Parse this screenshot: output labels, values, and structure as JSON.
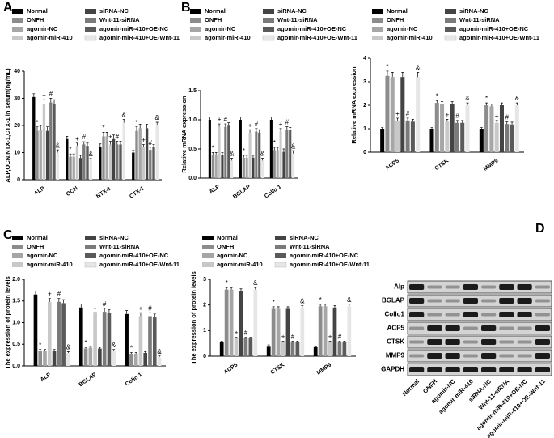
{
  "chart_data": [
    {
      "type": "bar",
      "panel": "A",
      "ylabel": "ALP,OCN,NTX-1,CTX-1 in serum(ng/mL)",
      "categories": [
        "ALP",
        "OCN",
        "NTX-1",
        "CTX-1"
      ],
      "ylim": [
        0,
        40
      ],
      "yticks": [
        0,
        10,
        20,
        30,
        40
      ],
      "series": [
        {
          "name": "Normal",
          "color": "#000000",
          "values": [
            30.5,
            15,
            12,
            10
          ],
          "errors": [
            1.2,
            1,
            1.2,
            0.8
          ]
        },
        {
          "name": "ONFH",
          "color": "#8c8c8c",
          "marker": "*",
          "values": [
            18,
            8.5,
            16,
            18
          ],
          "errors": [
            1.5,
            1,
            1.5,
            1.5
          ]
        },
        {
          "name": "agomir-NC",
          "color": "#a6a6a6",
          "values": [
            18.5,
            8.5,
            16,
            19
          ],
          "errors": [
            1.5,
            1,
            1.5,
            1.5
          ]
        },
        {
          "name": "agomir-miR-410",
          "color": "#c8c8c8",
          "marker": "+",
          "values": [
            28,
            12.5,
            13,
            12
          ],
          "errors": [
            1.5,
            1,
            1.2,
            1
          ]
        },
        {
          "name": "siRNA-NC",
          "color": "#444444",
          "values": [
            18,
            8,
            15,
            19
          ],
          "errors": [
            1.5,
            1,
            1.5,
            1.5
          ]
        },
        {
          "name": "Wnt-11-siRNA",
          "color": "#7a7a7a",
          "marker": "#",
          "values": [
            28.5,
            13,
            13,
            11
          ],
          "errors": [
            1.5,
            1,
            1.2,
            1
          ]
        },
        {
          "name": "agomir-miR-410+OE-NC",
          "color": "#5a5a5a",
          "values": [
            28,
            12.5,
            13,
            12
          ],
          "errors": [
            1.5,
            1,
            1.2,
            1
          ]
        },
        {
          "name": "agomir-miR-410+OE-Wnt-11",
          "color": "#e6e6e6",
          "marker": "&",
          "values": [
            10,
            7,
            21,
            20
          ],
          "errors": [
            1,
            0.8,
            1.2,
            1.2
          ]
        }
      ]
    },
    {
      "type": "bar",
      "panel": "B",
      "ylabel": "Relative mRNA expression",
      "categories": [
        "ALP",
        "BGLAP",
        "Collo 1"
      ],
      "ylim": [
        0,
        1.5
      ],
      "yticks": [
        {
          "value": 0,
          "label": "0.0"
        },
        0.5,
        {
          "value": 1,
          "label": "1.0"
        },
        1.5
      ],
      "series": [
        {
          "name": "Normal",
          "color": "#000000",
          "values": [
            1.0,
            1.0,
            1.0
          ],
          "errors": [
            0.05,
            0.05,
            0.05
          ]
        },
        {
          "name": "ONFH",
          "color": "#8c8c8c",
          "marker": "*",
          "values": [
            0.4,
            0.35,
            0.48
          ],
          "errors": [
            0.04,
            0.04,
            0.05
          ]
        },
        {
          "name": "agomir-NC",
          "color": "#a6a6a6",
          "values": [
            0.4,
            0.35,
            0.48
          ],
          "errors": [
            0.04,
            0.04,
            0.05
          ]
        },
        {
          "name": "agomir-miR-410",
          "color": "#c8c8c8",
          "marker": "+",
          "values": [
            0.88,
            0.78,
            0.8
          ],
          "errors": [
            0.05,
            0.05,
            0.05
          ]
        },
        {
          "name": "siRNA-NC",
          "color": "#444444",
          "values": [
            0.4,
            0.35,
            0.45
          ],
          "errors": [
            0.04,
            0.04,
            0.05
          ]
        },
        {
          "name": "Wnt-11-siRNA",
          "color": "#7a7a7a",
          "marker": "#",
          "values": [
            0.88,
            0.8,
            0.83
          ],
          "errors": [
            0.05,
            0.05,
            0.05
          ]
        },
        {
          "name": "agomir-miR-410+OE-NC",
          "color": "#5a5a5a",
          "values": [
            0.9,
            0.78,
            0.82
          ],
          "errors": [
            0.05,
            0.05,
            0.05
          ]
        },
        {
          "name": "agomir-miR-410+OE-Wnt-11",
          "color": "#e6e6e6",
          "marker": "&",
          "values": [
            0.3,
            0.3,
            0.42
          ],
          "errors": [
            0.04,
            0.04,
            0.05
          ]
        }
      ]
    },
    {
      "type": "bar",
      "ylabel": "Relative mRNA expression",
      "categories": [
        "ACP5",
        "CTSK",
        "MMP9"
      ],
      "ylim": [
        0,
        4
      ],
      "yticks": [
        0,
        1,
        2,
        3,
        4
      ],
      "series": [
        {
          "name": "Normal",
          "color": "#000000",
          "values": [
            1.0,
            1.0,
            1.0
          ],
          "errors": [
            0.05,
            0.05,
            0.05
          ]
        },
        {
          "name": "ONFH",
          "color": "#8c8c8c",
          "marker": "*",
          "values": [
            3.25,
            2.1,
            2.0
          ],
          "errors": [
            0.2,
            0.1,
            0.1
          ]
        },
        {
          "name": "agomir-NC",
          "color": "#a6a6a6",
          "values": [
            3.2,
            2.05,
            1.95
          ],
          "errors": [
            0.2,
            0.1,
            0.1
          ]
        },
        {
          "name": "agomir-miR-410",
          "color": "#c8c8c8",
          "marker": "+",
          "values": [
            1.35,
            1.3,
            1.25
          ],
          "errors": [
            0.1,
            0.1,
            0.1
          ]
        },
        {
          "name": "siRNA-NC",
          "color": "#444444",
          "values": [
            3.2,
            2.05,
            2.0
          ],
          "errors": [
            0.2,
            0.1,
            0.1
          ]
        },
        {
          "name": "Wnt-11-siRNA",
          "color": "#7a7a7a",
          "marker": "#",
          "values": [
            1.35,
            1.25,
            1.2
          ],
          "errors": [
            0.1,
            0.1,
            0.1
          ]
        },
        {
          "name": "agomir-miR-410+OE-NC",
          "color": "#5a5a5a",
          "values": [
            1.3,
            1.25,
            1.18
          ],
          "errors": [
            0.1,
            0.1,
            0.1
          ]
        },
        {
          "name": "agomir-miR-410+OE-Wnt-11",
          "color": "#e6e6e6",
          "marker": "&",
          "values": [
            3.2,
            2.0,
            2.0
          ],
          "errors": [
            0.2,
            0.1,
            0.1
          ]
        }
      ]
    },
    {
      "type": "bar",
      "panel": "C",
      "ylabel": "The expression of protein levels",
      "categories": [
        "ALP",
        "BGLAP",
        "Collo 1"
      ],
      "ylim": [
        0,
        2
      ],
      "yticks": [
        {
          "value": 0,
          "label": "0.0"
        },
        0.5,
        {
          "value": 1,
          "label": "1.0"
        },
        1.5,
        {
          "value": 2,
          "label": "2.0"
        }
      ],
      "series": [
        {
          "name": "Normal",
          "color": "#000000",
          "values": [
            1.65,
            1.35,
            1.2
          ],
          "errors": [
            0.08,
            0.08,
            0.08
          ]
        },
        {
          "name": "ONFH",
          "color": "#8c8c8c",
          "marker": "*",
          "values": [
            0.35,
            0.4,
            0.28
          ],
          "errors": [
            0.03,
            0.03,
            0.03
          ]
        },
        {
          "name": "agomir-NC",
          "color": "#a6a6a6",
          "values": [
            0.35,
            0.42,
            0.28
          ],
          "errors": [
            0.03,
            0.03,
            0.03
          ]
        },
        {
          "name": "agomir-miR-410",
          "color": "#c8c8c8",
          "marker": "+",
          "values": [
            1.48,
            1.25,
            1.15
          ],
          "errors": [
            0.08,
            0.08,
            0.08
          ]
        },
        {
          "name": "siRNA-NC",
          "color": "#444444",
          "values": [
            0.35,
            0.4,
            0.3
          ],
          "errors": [
            0.03,
            0.03,
            0.03
          ]
        },
        {
          "name": "Wnt-11-siRNA",
          "color": "#7a7a7a",
          "marker": "#",
          "values": [
            1.48,
            1.25,
            1.15
          ],
          "errors": [
            0.08,
            0.08,
            0.08
          ]
        },
        {
          "name": "agomir-miR-410+OE-NC",
          "color": "#5a5a5a",
          "values": [
            1.45,
            1.22,
            1.12
          ],
          "errors": [
            0.08,
            0.08,
            0.08
          ]
        },
        {
          "name": "agomir-miR-410+OE-Wnt-11",
          "color": "#e6e6e6",
          "marker": "&",
          "values": [
            0.3,
            0.35,
            0.2
          ],
          "errors": [
            0.03,
            0.03,
            0.03
          ]
        }
      ]
    },
    {
      "type": "bar",
      "ylabel": "The expression of protein levels",
      "categories": [
        "ACP5",
        "CTSK",
        "MMP9"
      ],
      "ylim": [
        0,
        3
      ],
      "yticks": [
        0,
        1,
        2,
        3
      ],
      "series": [
        {
          "name": "Normal",
          "color": "#000000",
          "values": [
            0.55,
            0.4,
            0.35
          ],
          "errors": [
            0.04,
            0.04,
            0.04
          ]
        },
        {
          "name": "ONFH",
          "color": "#8c8c8c",
          "marker": "*",
          "values": [
            2.6,
            1.85,
            1.95
          ],
          "errors": [
            0.08,
            0.08,
            0.08
          ]
        },
        {
          "name": "agomir-NC",
          "color": "#a6a6a6",
          "values": [
            2.6,
            1.85,
            1.95
          ],
          "errors": [
            0.08,
            0.08,
            0.08
          ]
        },
        {
          "name": "agomir-miR-410",
          "color": "#c8c8c8",
          "marker": "+",
          "values": [
            0.7,
            0.55,
            0.55
          ],
          "errors": [
            0.04,
            0.04,
            0.04
          ]
        },
        {
          "name": "siRNA-NC",
          "color": "#444444",
          "values": [
            2.55,
            1.85,
            1.9
          ],
          "errors": [
            0.08,
            0.08,
            0.08
          ]
        },
        {
          "name": "Wnt-11-siRNA",
          "color": "#7a7a7a",
          "marker": "#",
          "values": [
            0.7,
            0.55,
            0.55
          ],
          "errors": [
            0.04,
            0.04,
            0.04
          ]
        },
        {
          "name": "agomir-miR-410+OE-NC",
          "color": "#5a5a5a",
          "values": [
            0.7,
            0.55,
            0.55
          ],
          "errors": [
            0.04,
            0.04,
            0.04
          ]
        },
        {
          "name": "agomir-miR-410+OE-Wnt-11",
          "color": "#e6e6e6",
          "marker": "&",
          "values": [
            2.6,
            1.9,
            1.95
          ],
          "errors": [
            0.08,
            0.08,
            0.08
          ]
        }
      ]
    }
  ],
  "blot": {
    "panel": "D",
    "rows": [
      "Alp",
      "BGLAP",
      "Collo1",
      "ACP5",
      "CTSK",
      "MMP9",
      "GAPDH"
    ],
    "columns": [
      "Normal",
      "ONFH",
      "agomir-NC",
      "agomir-miR-410",
      "siRNA-NC",
      "Wnt-11-siRNA",
      "agomir-miR-410+OE-NC",
      "agomir-miR-410+OE-Wnt-11"
    ]
  }
}
